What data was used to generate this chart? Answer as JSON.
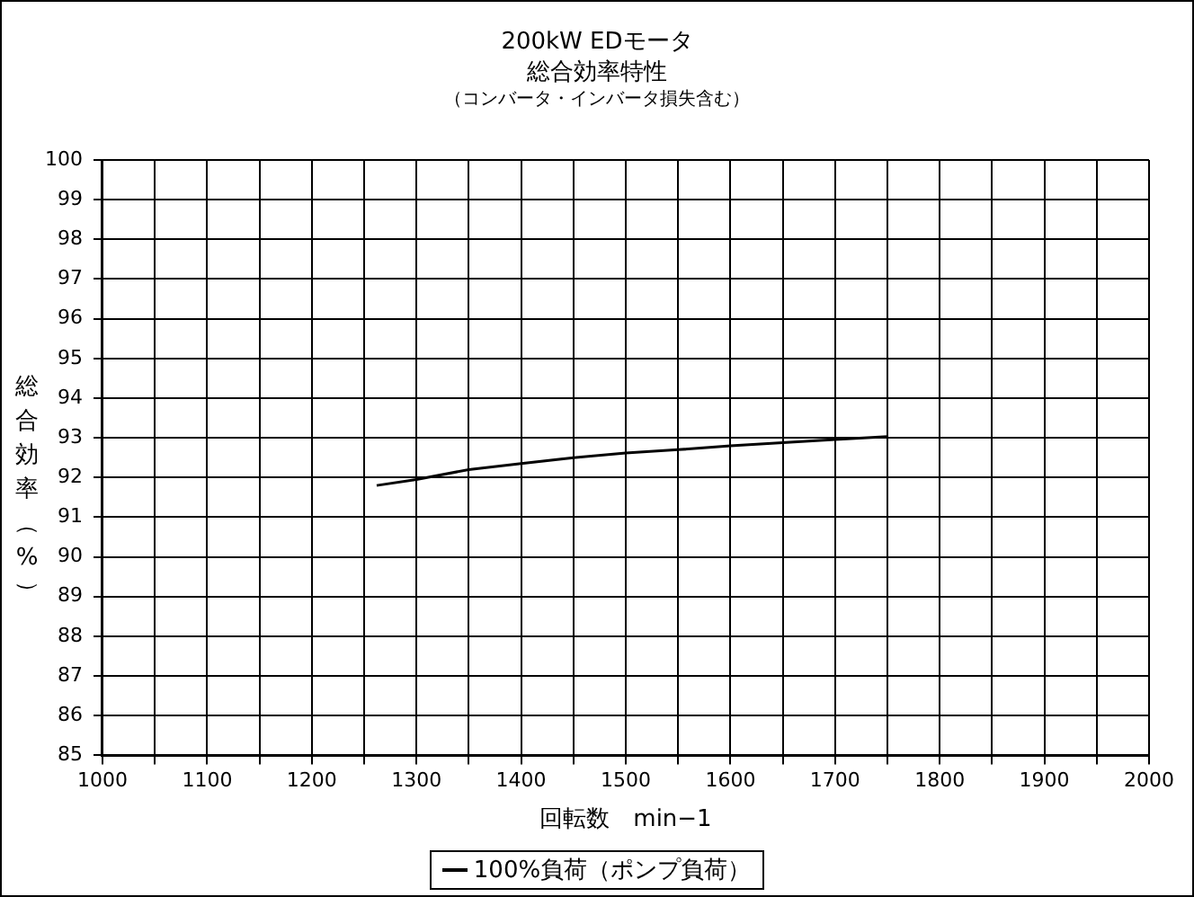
{
  "chart_data": {
    "type": "line",
    "title": "200kW EDモータ",
    "subtitle": "総合効率特性",
    "annotations": [
      "（コンバータ・インバータ損失含む）"
    ],
    "xlabel": "回転数　min−1",
    "ylabel": "総合効率（%）",
    "x": [
      1262,
      1300,
      1350,
      1400,
      1450,
      1500,
      1550,
      1600,
      1650,
      1700,
      1750
    ],
    "series": [
      {
        "name": "100%負荷（ポンプ負荷）",
        "color": "#000000",
        "values": [
          91.8,
          91.95,
          92.2,
          92.35,
          92.5,
          92.62,
          92.7,
          92.8,
          92.88,
          92.96,
          93.03
        ]
      }
    ],
    "xlim": [
      1000,
      2000
    ],
    "xticks": [
      1000,
      {
        "value": 1050,
        "label": null
      },
      1100,
      {
        "value": 1150,
        "label": null
      },
      1200,
      {
        "value": 1250,
        "label": null
      },
      1300,
      {
        "value": 1350,
        "label": null
      },
      1400,
      {
        "value": 1450,
        "label": null
      },
      1500,
      {
        "value": 1550,
        "label": null
      },
      1600,
      {
        "value": 1650,
        "label": null
      },
      1700,
      {
        "value": 1750,
        "label": null
      },
      1800,
      {
        "value": 1850,
        "label": null
      },
      1900,
      {
        "value": 1950,
        "label": null
      },
      2000
    ],
    "ylim": [
      85,
      100
    ],
    "yticks": [
      85,
      86,
      87,
      88,
      89,
      90,
      91,
      92,
      93,
      94,
      95,
      96,
      97,
      98,
      99,
      100
    ],
    "grid": true,
    "legend": "bottom",
    "marker": "none",
    "line_style": "solid"
  }
}
